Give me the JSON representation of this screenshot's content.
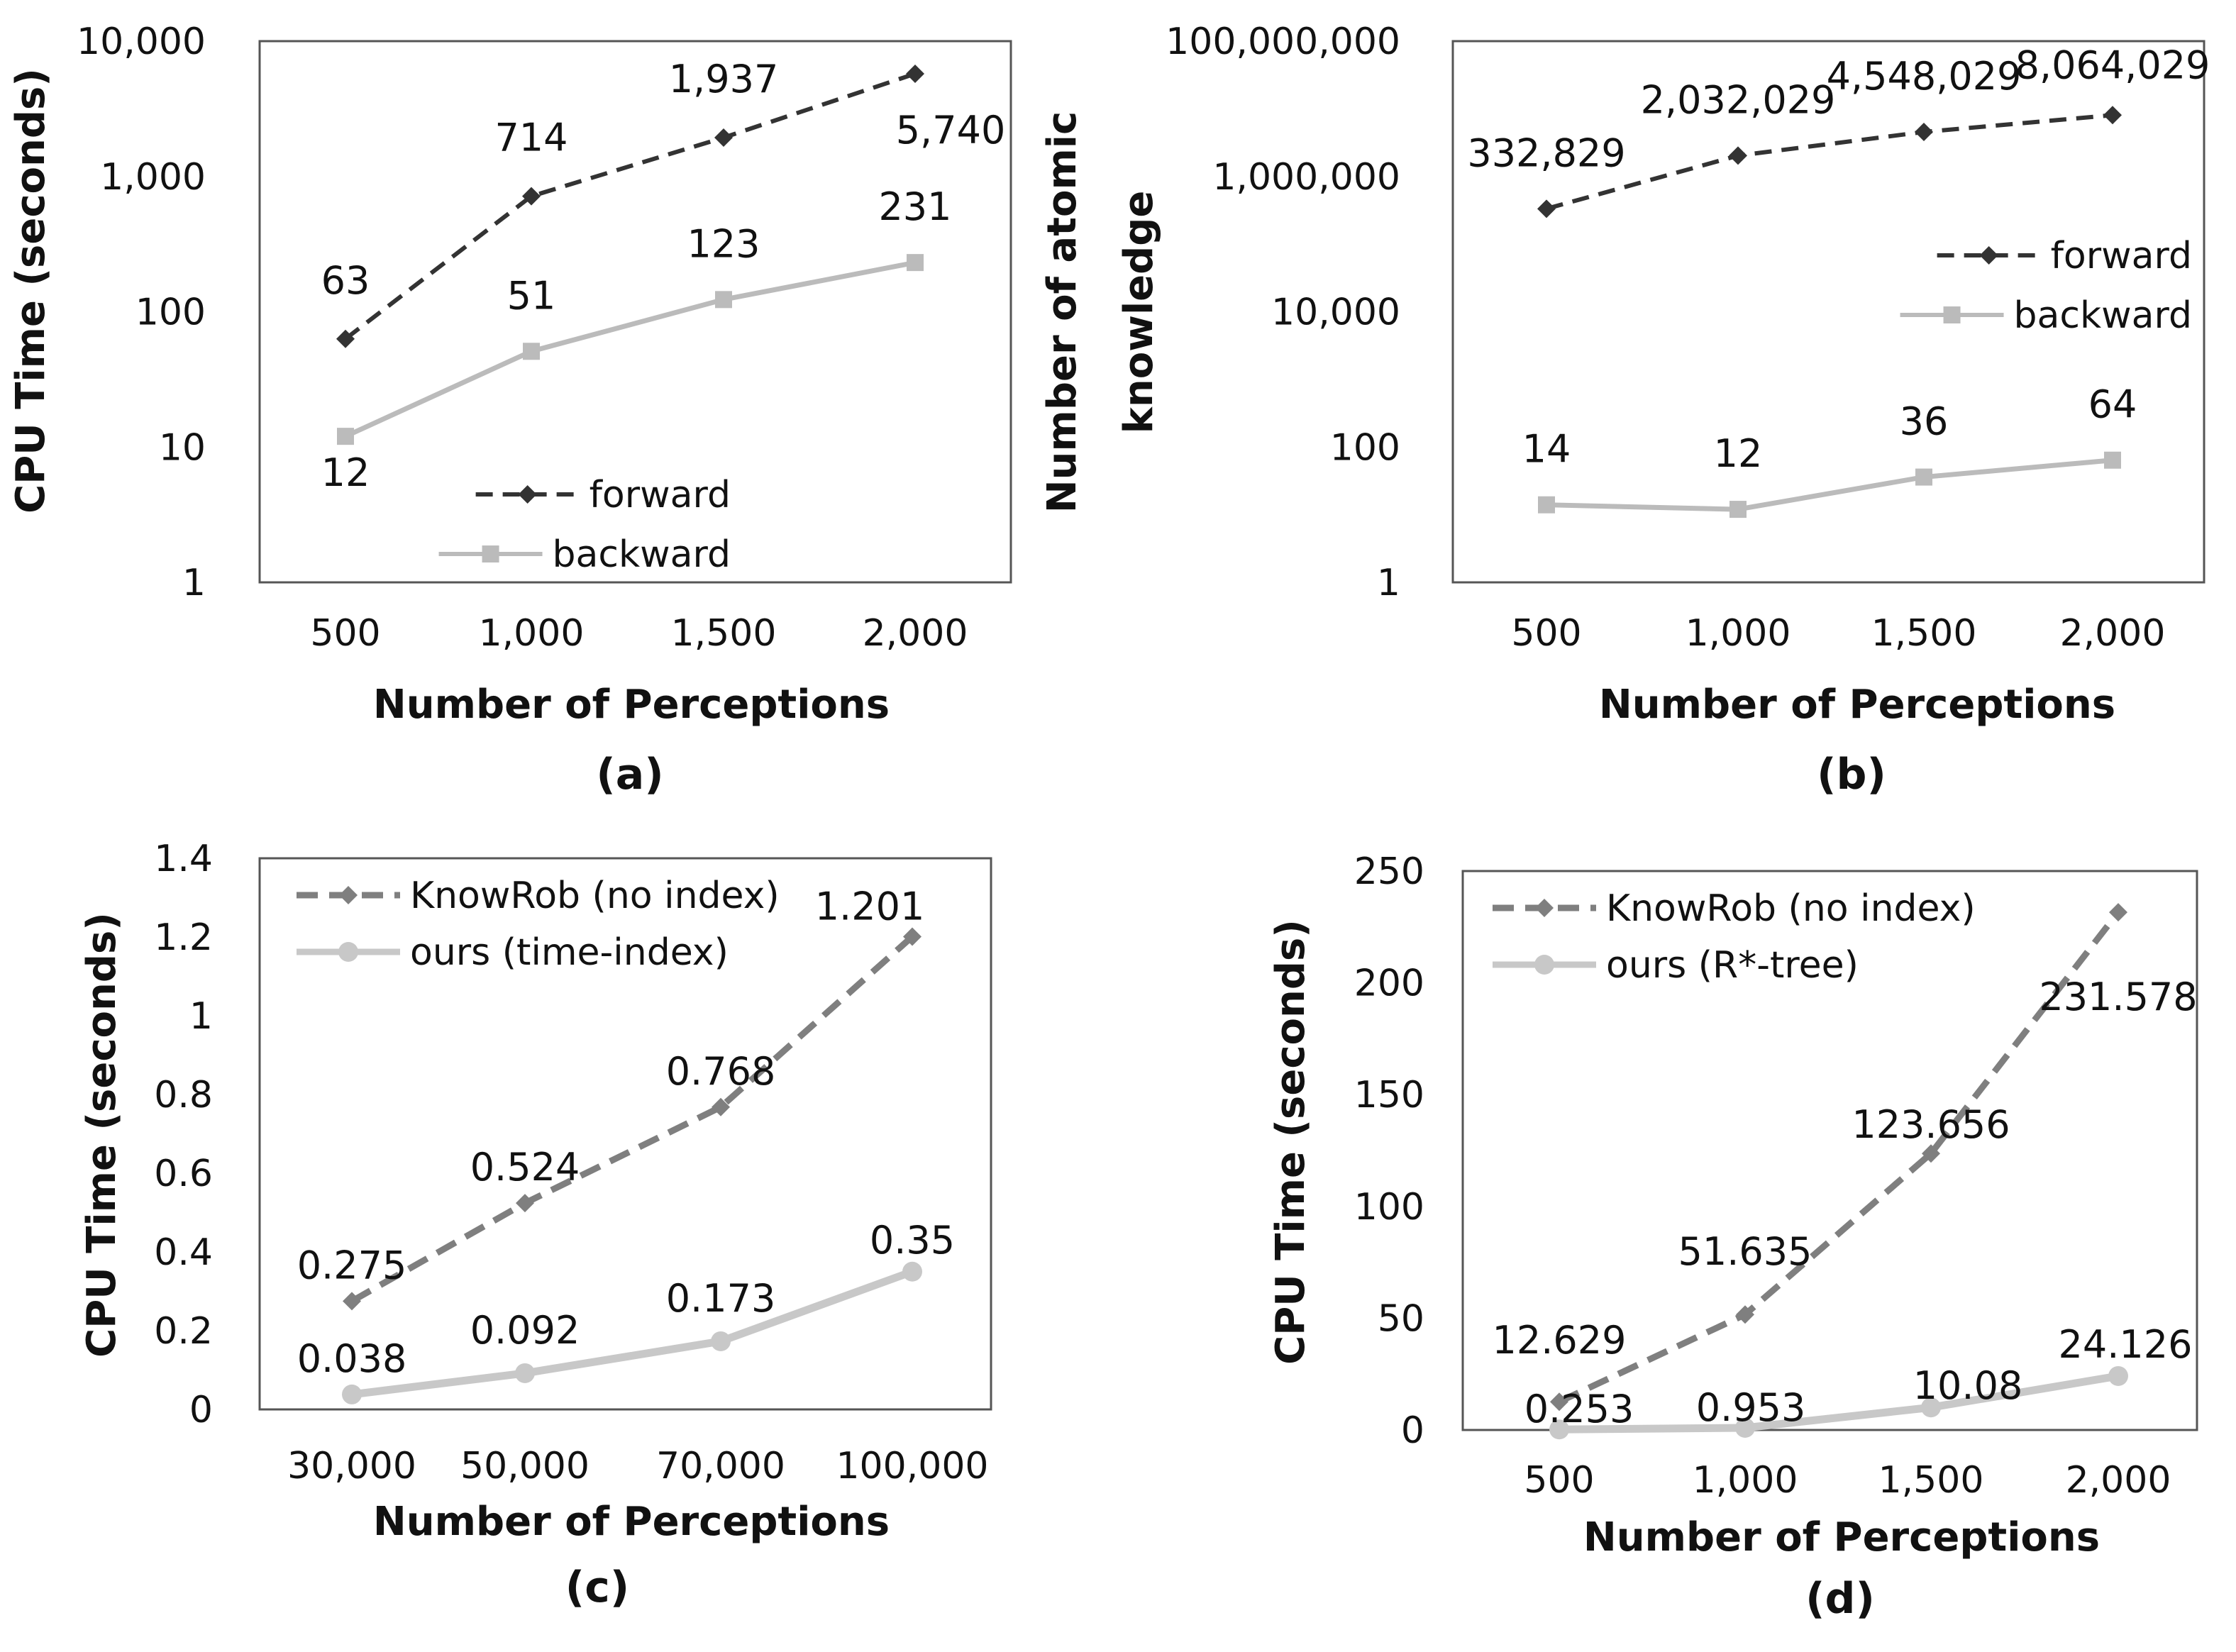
{
  "chart_data": [
    {
      "type": "line",
      "panel": "(a)",
      "scale": "log",
      "xlabel": "Number of Perceptions",
      "ylabel": "CPU Time (seconds)",
      "categories": [
        "500",
        "1,000",
        "1,500",
        "2,000"
      ],
      "ylim": [
        1,
        10000
      ],
      "yticks": [
        1,
        10,
        100,
        1000,
        10000
      ],
      "ytick_labels": [
        "1",
        "10",
        "100",
        "1,000",
        "10,000"
      ],
      "legend_position": "bottom-right",
      "series": [
        {
          "name": "forward",
          "values": [
            63,
            714,
            1937,
            5740
          ],
          "labels": [
            "63",
            "714",
            "1,937",
            "5,740"
          ],
          "color": "#333333",
          "style": "dashed",
          "marker": "diamond"
        },
        {
          "name": "backward",
          "values": [
            12,
            51,
            123,
            231
          ],
          "labels": [
            "12",
            "51",
            "123",
            "231"
          ],
          "color": "#bbbbbb",
          "style": "solid",
          "marker": "square"
        }
      ]
    },
    {
      "type": "line",
      "panel": "(b)",
      "scale": "log",
      "xlabel": "Number of Perceptions",
      "ylabel": [
        "Number of atomic",
        "knowledge"
      ],
      "categories": [
        "500",
        "1,000",
        "1,500",
        "2,000"
      ],
      "ylim": [
        1,
        100000000
      ],
      "yticks": [
        1,
        100,
        10000,
        1000000,
        100000000
      ],
      "ytick_labels": [
        "1",
        "100",
        "10,000",
        "1,000,000",
        "100,000,000"
      ],
      "legend_position": "right",
      "series": [
        {
          "name": "forward",
          "values": [
            332829,
            2032029,
            4548029,
            8064029
          ],
          "labels": [
            "332,829",
            "2,032,029",
            "4,548,029",
            "8,064,029"
          ],
          "color": "#333333",
          "style": "dashed",
          "marker": "diamond"
        },
        {
          "name": "backward",
          "values": [
            14,
            12,
            36,
            64
          ],
          "labels": [
            "14",
            "12",
            "36",
            "64"
          ],
          "color": "#bbbbbb",
          "style": "solid",
          "marker": "square"
        }
      ]
    },
    {
      "type": "line",
      "panel": "(c)",
      "scale": "linear",
      "xlabel": "Number of Perceptions",
      "ylabel": "CPU Time (seconds)",
      "categories": [
        "30,000",
        "50,000",
        "70,000",
        "100,000"
      ],
      "ylim": [
        0,
        1.4
      ],
      "yticks": [
        0,
        0.2,
        0.4,
        0.6,
        0.8,
        1,
        1.2,
        1.4
      ],
      "ytick_labels": [
        "0",
        "0.2",
        "0.4",
        "0.6",
        "0.8",
        "1",
        "1.2",
        "1.4"
      ],
      "legend_position": "top-left",
      "series": [
        {
          "name": "KnowRob (no index)",
          "values": [
            0.275,
            0.524,
            0.768,
            1.201
          ],
          "labels": [
            "0.275",
            "0.524",
            "0.768",
            "1.201"
          ],
          "color": "#7f7f7f",
          "style": "dashed",
          "marker": "diamond"
        },
        {
          "name": "ours (time-index)",
          "values": [
            0.038,
            0.092,
            0.173,
            0.35
          ],
          "labels": [
            "0.038",
            "0.092",
            "0.173",
            "0.35"
          ],
          "color": "#c8c8c8",
          "style": "solid",
          "marker": "circle"
        }
      ]
    },
    {
      "type": "line",
      "panel": "(d)",
      "scale": "linear",
      "xlabel": "Number of Perceptions",
      "ylabel": "CPU Time (seconds)",
      "categories": [
        "500",
        "1,000",
        "1,500",
        "2,000"
      ],
      "ylim": [
        0,
        250
      ],
      "yticks": [
        0,
        50,
        100,
        150,
        200,
        250
      ],
      "ytick_labels": [
        "0",
        "50",
        "100",
        "150",
        "200",
        "250"
      ],
      "legend_position": "top-left",
      "series": [
        {
          "name": "KnowRob (no index)",
          "values": [
            12.629,
            51.635,
            123.656,
            231.578
          ],
          "labels": [
            "12.629",
            "51.635",
            "123.656",
            "231.578"
          ],
          "color": "#7f7f7f",
          "style": "dashed",
          "marker": "diamond"
        },
        {
          "name": "ours (R*-tree)",
          "values": [
            0.253,
            0.953,
            10.08,
            24.126
          ],
          "labels": [
            "0.253",
            "0.953",
            "10.08",
            "24.126"
          ],
          "color": "#c8c8c8",
          "style": "solid",
          "marker": "circle"
        }
      ]
    }
  ]
}
